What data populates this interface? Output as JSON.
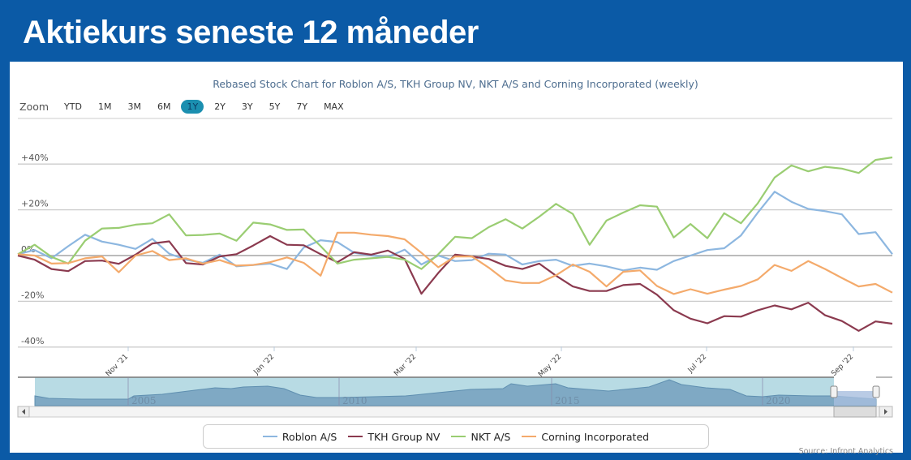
{
  "header": {
    "title": "Aktiekurs seneste 12 måneder"
  },
  "zoom": {
    "label": "Zoom",
    "buttons": [
      "YTD",
      "1M",
      "3M",
      "6M",
      "1Y",
      "2Y",
      "3Y",
      "5Y",
      "7Y",
      "MAX"
    ],
    "active": "1Y"
  },
  "navigator": {
    "years": [
      "2005",
      "2010",
      "2015",
      "2020"
    ]
  },
  "source": "Source: Infront Analytics",
  "chart_data": {
    "type": "line",
    "title": "Rebased Stock Chart for Roblon A/S, TKH Group NV, NKT A/S and Corning Incorporated (weekly)",
    "xlabel": "",
    "ylabel": "",
    "x_ticks": [
      "Nov '21",
      "Jan '22",
      "Mar '22",
      "May '22",
      "Jul '22",
      "Sep '22"
    ],
    "y_ticks": [
      "+40%",
      "+20%",
      "0%",
      "-20%",
      "-40%"
    ],
    "y_tick_values": [
      40,
      20,
      0,
      -20,
      -40
    ],
    "ylim": [
      -40,
      45
    ],
    "grid": true,
    "legend": "bottom",
    "series": [
      {
        "name": "Roblon A/S",
        "color": "#8db7e0",
        "values": [
          0.6,
          2.4,
          -1.2,
          4.1,
          9.1,
          6.1,
          4.7,
          2.9,
          7.3,
          0.8,
          -1.8,
          -3.2,
          0.4,
          -4.7,
          -4.1,
          -3.5,
          -5.9,
          3.5,
          6.7,
          5.9,
          1.2,
          0,
          -0.6,
          2.6,
          -3.9,
          0,
          -2.4,
          -2,
          0.8,
          0.4,
          -3.9,
          -2.4,
          -1.8,
          -4.5,
          -3.5,
          -4.7,
          -6.5,
          -5.3,
          -6.2,
          -2.4,
          0,
          2.4,
          3.2,
          8.8,
          18.8,
          27.9,
          23.5,
          20.4,
          19.4,
          18,
          9.4,
          10.2,
          0.6
        ]
      },
      {
        "name": "TKH Group NV",
        "color": "#8b3a4f",
        "values": [
          0,
          -1.8,
          -5.9,
          -6.8,
          -2.4,
          -2.2,
          -3.6,
          0.4,
          5.3,
          6.2,
          -3.3,
          -3.9,
          -0.4,
          0.6,
          4.4,
          8.5,
          4.7,
          4.5,
          0.6,
          -2.9,
          1.5,
          0.4,
          2.2,
          -1.5,
          -16.7,
          -7.6,
          0.4,
          -0.4,
          -1.5,
          -4.5,
          -5.9,
          -3.5,
          -8.8,
          -13.5,
          -15.5,
          -15.5,
          -12.9,
          -12.4,
          -17.1,
          -23.9,
          -27.6,
          -29.6,
          -26.5,
          -26.7,
          -23.9,
          -21.8,
          -23.5,
          -20.6,
          -26.1,
          -28.6,
          -32.9,
          -28.8,
          -29.8
        ]
      },
      {
        "name": "NKT A/S",
        "color": "#9acd72",
        "values": [
          0.6,
          4.7,
          -0.6,
          -3.5,
          6.5,
          11.8,
          12.1,
          13.5,
          14.1,
          18,
          8.8,
          9,
          9.6,
          6.5,
          14.4,
          13.6,
          11.2,
          11.4,
          4.1,
          -3.5,
          -1.8,
          -1.2,
          -0.6,
          -1.8,
          -5.9,
          0.6,
          8.2,
          7.6,
          12.4,
          15.9,
          11.8,
          17,
          22.6,
          18.2,
          4.7,
          15.3,
          18.8,
          22,
          21.4,
          7.9,
          13.8,
          7.6,
          18.5,
          14.1,
          22.9,
          34.1,
          39.4,
          36.8,
          38.8,
          38,
          36.1,
          41.8,
          42.9
        ]
      },
      {
        "name": "Corning Incorporated",
        "color": "#f4aa6b",
        "values": [
          0.6,
          0,
          -3.5,
          -3.3,
          -1.2,
          -0.4,
          -7.3,
          0,
          2,
          -2,
          -1.2,
          -3.5,
          -2,
          -4.4,
          -4.1,
          -2.9,
          -0.8,
          -3.2,
          -8.8,
          10,
          10,
          9.1,
          8.5,
          7.1,
          1.2,
          -5.1,
          -0.4,
          -0.4,
          -5.3,
          -10.9,
          -12,
          -12,
          -8.6,
          -3.9,
          -7.1,
          -13.5,
          -7.1,
          -6.5,
          -13.3,
          -16.8,
          -14.7,
          -16.7,
          -14.9,
          -13.3,
          -10.4,
          -4.1,
          -6.7,
          -2.4,
          -5.9,
          -9.8,
          -13.5,
          -12.4,
          -16.2
        ]
      }
    ]
  }
}
